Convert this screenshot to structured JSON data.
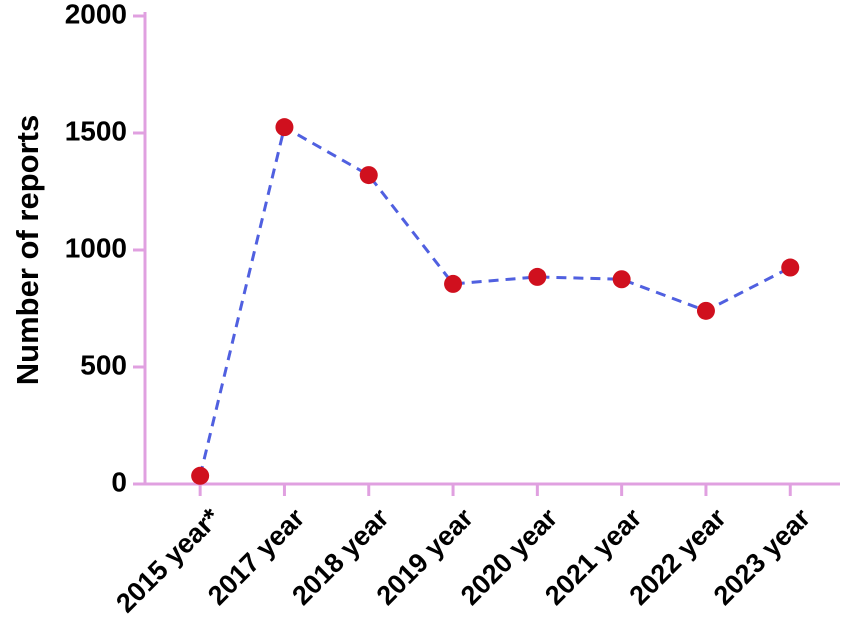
{
  "chart_data": {
    "type": "line",
    "y_label": "Number of reports",
    "categories": [
      "2015 year*",
      "2017 year",
      "2018 year",
      "2019 year",
      "2020 year",
      "2021 year",
      "2022 year",
      "2023 year"
    ],
    "values": [
      35,
      1525,
      1320,
      855,
      885,
      875,
      740,
      925
    ],
    "line_color": "#5060e0",
    "marker_color": "#d0101e",
    "axis_color": "#e0a0e0",
    "ylim": [
      0,
      2000
    ],
    "yticks": [
      0,
      500,
      1000,
      1500,
      2000
    ]
  }
}
